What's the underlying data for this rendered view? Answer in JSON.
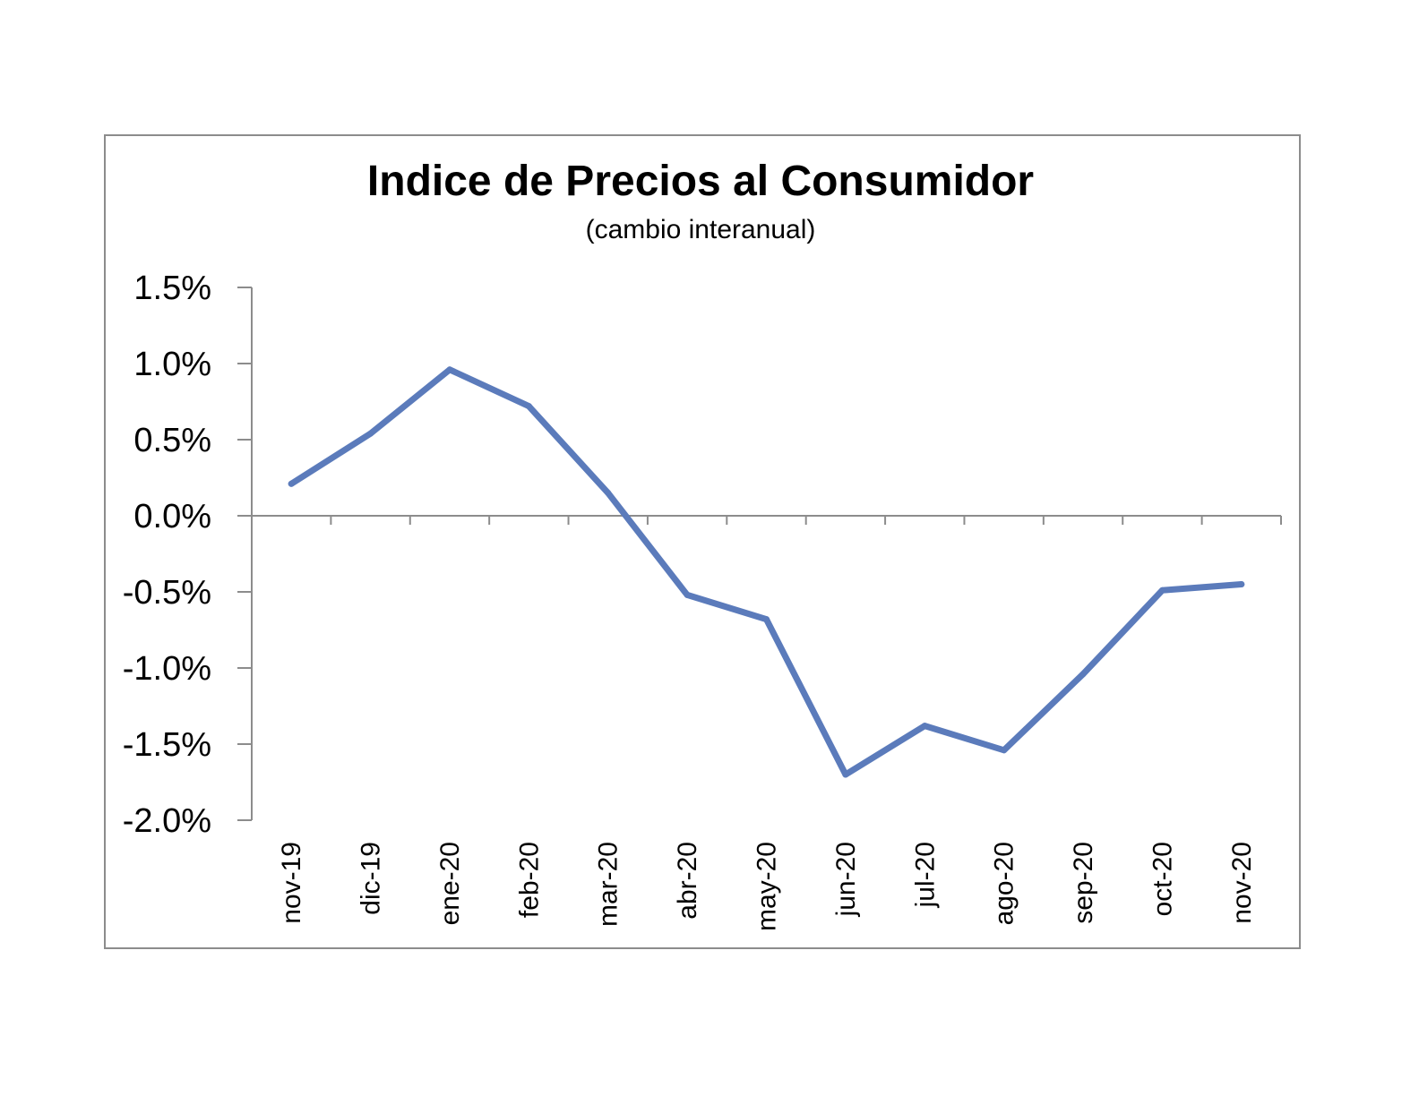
{
  "chart_data": {
    "type": "line",
    "title": "Indice de Precios al Consumidor",
    "subtitle": "(cambio interanual)",
    "xlabel": "",
    "ylabel": "",
    "categories": [
      "nov-19",
      "dic-19",
      "ene-20",
      "feb-20",
      "mar-20",
      "abr-20",
      "may-20",
      "jun-20",
      "jul-20",
      "ago-20",
      "sep-20",
      "oct-20",
      "nov-20"
    ],
    "series": [
      {
        "values": [
          0.21,
          0.54,
          0.96,
          0.72,
          0.15,
          -0.52,
          -0.68,
          -1.7,
          -1.38,
          -1.54,
          -1.04,
          -0.49,
          -0.45
        ],
        "color": "#5b7bbb"
      }
    ],
    "ylim": [
      -2.0,
      1.5
    ],
    "y_ticks": [
      1.5,
      1.0,
      0.5,
      0.0,
      -0.5,
      -1.0,
      -1.5,
      -2.0
    ],
    "y_tick_labels": [
      "1.5%",
      "1.0%",
      "0.5%",
      "0.0%",
      "-0.5%",
      "-1.0%",
      "-1.5%",
      "-2.0%"
    ],
    "grid": false,
    "legend": "none",
    "axis_color": "#8c8c8c"
  }
}
